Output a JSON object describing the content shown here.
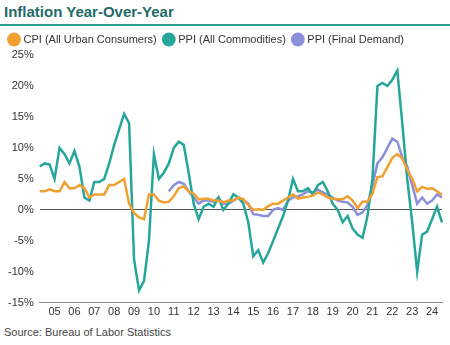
{
  "chart_data": {
    "type": "line",
    "title": "Inflation Year-Over-Year",
    "source": "Source: Bureau of Labor Statistics",
    "categories": [
      null,
      null,
      null,
      "05",
      null,
      null,
      null,
      "06",
      null,
      null,
      null,
      "07",
      null,
      null,
      null,
      "08",
      null,
      null,
      null,
      "09",
      null,
      null,
      null,
      "10",
      null,
      null,
      null,
      "11",
      null,
      null,
      null,
      "12",
      null,
      null,
      null,
      "13",
      null,
      null,
      null,
      "14",
      null,
      null,
      null,
      "15",
      null,
      null,
      null,
      "16",
      null,
      null,
      null,
      "17",
      null,
      null,
      null,
      "18",
      null,
      null,
      null,
      "19",
      null,
      null,
      null,
      "20",
      null,
      null,
      null,
      "21",
      null,
      null,
      null,
      "22",
      null,
      null,
      null,
      "23",
      null,
      null,
      null,
      "24",
      null,
      null
    ],
    "series": [
      {
        "name": "CPI (All Urban Consumers)",
        "color": "#f0a030",
        "values": [
          3,
          3,
          3.3,
          3,
          3,
          4.5,
          3.5,
          3.5,
          4,
          3.5,
          2,
          2.5,
          2.5,
          2.5,
          4,
          4,
          4.5,
          5,
          1,
          -0.5,
          -1.2,
          -1.5,
          2.5,
          2.5,
          1.5,
          1.2,
          1.3,
          2.2,
          3.5,
          3.8,
          3,
          2.6,
          1.7,
          1.8,
          1.8,
          1.5,
          1.5,
          1.2,
          1.5,
          1.5,
          2,
          1.7,
          0.8,
          0,
          0.1,
          0,
          0.6,
          1,
          1,
          1.5,
          2,
          2.5,
          1.8,
          2,
          2.1,
          2.3,
          2.8,
          2.5,
          2,
          1.8,
          1.7,
          1.7,
          2.2,
          1.5,
          0.3,
          1.3,
          1.3,
          2.6,
          5.3,
          5.4,
          6.9,
          8.4,
          9,
          8.3,
          6.5,
          5,
          3,
          3.7,
          3.4,
          3.5,
          3,
          2.4
        ]
      },
      {
        "name": "PPI (All Commodities)",
        "color": "#26a69a",
        "values": [
          7,
          7.5,
          7.3,
          5,
          10,
          9,
          7.5,
          9.5,
          7,
          2,
          1.5,
          4.5,
          4.5,
          5,
          7.5,
          10.5,
          13,
          15.5,
          14,
          -8,
          -13,
          -11.5,
          -5,
          9,
          5,
          6,
          7.5,
          10,
          11,
          10.5,
          6,
          1,
          -1.5,
          0.5,
          1,
          0.5,
          2,
          0,
          1,
          2.5,
          2,
          1,
          -2,
          -7.5,
          -6.5,
          -8.5,
          -7,
          -5,
          -3,
          -1,
          1.5,
          5,
          3,
          3,
          3.5,
          2.5,
          4,
          4.5,
          3,
          1,
          0,
          -2,
          -1,
          -3,
          -4,
          -4.5,
          -1,
          5,
          20,
          20.5,
          20,
          21,
          22.5,
          14,
          5,
          -2,
          -10,
          -4,
          -3.5,
          -1.5,
          0.5,
          -2
        ]
      },
      {
        "name": "PPI (Final Demand)",
        "color": "#8c8fd9",
        "values": [
          null,
          null,
          null,
          null,
          null,
          null,
          null,
          null,
          null,
          null,
          null,
          null,
          null,
          null,
          null,
          null,
          null,
          null,
          null,
          null,
          null,
          null,
          null,
          null,
          null,
          null,
          3,
          4,
          4.5,
          4.2,
          3,
          2,
          1,
          1.5,
          1.5,
          1.3,
          2,
          1,
          1,
          1.5,
          2,
          1.6,
          1,
          -0.7,
          -0.8,
          -1,
          -1,
          0,
          0.3,
          0,
          1.5,
          2,
          2.2,
          2.5,
          3,
          2.8,
          3.3,
          2.8,
          2.5,
          2,
          1.5,
          1.3,
          1.2,
          0.5,
          -0.8,
          -0.4,
          0.8,
          4,
          7.5,
          8.5,
          10,
          11.5,
          11,
          8.5,
          7,
          4,
          1,
          2,
          1,
          1.5,
          2.5,
          2
        ]
      }
    ],
    "ylim": [
      -15,
      25
    ],
    "yticks": [
      {
        "value": -15,
        "label": "-15%"
      },
      {
        "value": -10,
        "label": "-10%"
      },
      {
        "value": -5,
        "label": "-5%"
      },
      {
        "value": 0,
        "label": "0%"
      },
      {
        "value": 5,
        "label": "5%"
      },
      {
        "value": 10,
        "label": "10%"
      },
      {
        "value": 15,
        "label": "15%"
      },
      {
        "value": 20,
        "label": "20%"
      },
      {
        "value": 25,
        "label": "25%"
      }
    ],
    "grid": false,
    "legend": "top"
  }
}
